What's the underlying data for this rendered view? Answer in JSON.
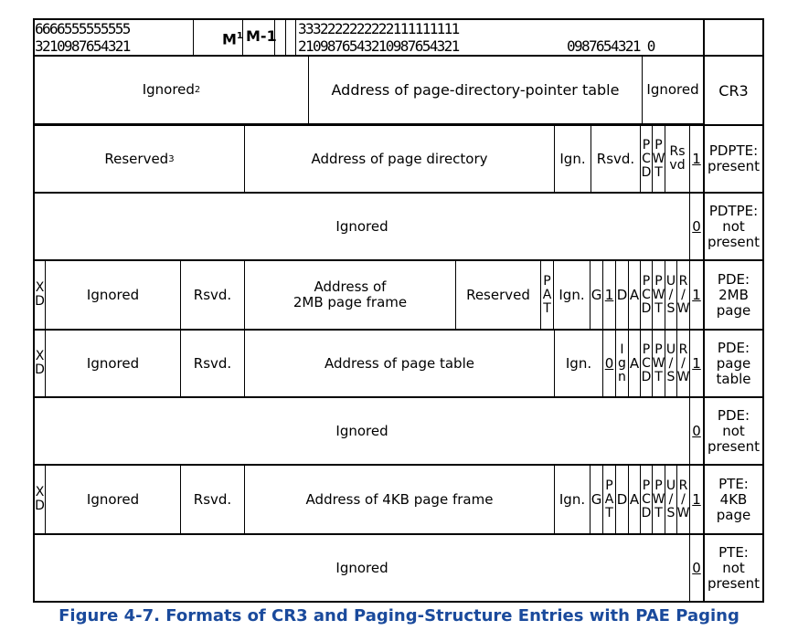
{
  "header": {
    "hi_top": "6666555555555",
    "hi_bot": "3210987654321",
    "m1": "M",
    "m1_sup": "1",
    "m_minus_1": "M-1",
    "lo_top": "3332222222222111111111",
    "lo_bot": "2109876543210987654321",
    "lo_tail_top": "",
    "lo_tail_bot": "0987654321 0"
  },
  "rows": {
    "cr3": {
      "ignored": "Ignored",
      "ignored_sup": "2",
      "address": "Address of page-directory-pointer table",
      "ignored2": "Ignored",
      "label": "CR3"
    },
    "pdpte_present": {
      "reserved": "Reserved",
      "reserved_sup": "3",
      "address": "Address of page directory",
      "ign": "Ign.",
      "rsvd": "Rsvd.",
      "pcd": "P\nC\nD",
      "pwt": "P\nW\nT",
      "rsvd2": "Rs\nvd",
      "p": "1",
      "label": "PDPTE:\npresent"
    },
    "pdpte_not_present": {
      "ignored": "Ignored",
      "p": "0",
      "label": "PDTPE:\nnot\npresent"
    },
    "pde_2mb": {
      "xd": "X\nD",
      "ignored": "Ignored",
      "rsvd": "Rsvd.",
      "address": "Address of\n2MB page frame",
      "reserved": "Reserved",
      "pat": "P\nA\nT",
      "ign": "Ign.",
      "g": "G",
      "ps": "1",
      "d": "D",
      "a": "A",
      "pcd": "P\nC\nD",
      "pwt": "P\nW\nT",
      "us": "U\n/\nS",
      "rw": "R\n/\nW",
      "p": "1",
      "label": "PDE:\n2MB\npage"
    },
    "pde_table": {
      "xd": "X\nD",
      "ignored": "Ignored",
      "rsvd": "Rsvd.",
      "address": "Address of page table",
      "ign": "Ign.",
      "ps": "0",
      "ign2": "I\ng\nn",
      "a": "A",
      "pcd": "P\nC\nD",
      "pwt": "P\nW\nT",
      "us": "U\n/\nS",
      "rw": "R\n/\nW",
      "p": "1",
      "label": "PDE:\npage\ntable"
    },
    "pde_not_present": {
      "ignored": "Ignored",
      "p": "0",
      "label": "PDE:\nnot\npresent"
    },
    "pte_4kb": {
      "xd": "X\nD",
      "ignored": "Ignored",
      "rsvd": "Rsvd.",
      "address": "Address of 4KB page frame",
      "ign": "Ign.",
      "g": "G",
      "pat": "P\nA\nT",
      "d": "D",
      "a": "A",
      "pcd": "P\nC\nD",
      "pwt": "P\nW\nT",
      "us": "U\n/\nS",
      "rw": "R\n/\nW",
      "p": "1",
      "label": "PTE:\n4KB\npage"
    },
    "pte_not_present": {
      "ignored": "Ignored",
      "p": "0",
      "label": "PTE:\nnot\npresent"
    }
  },
  "caption": "Figure 4-7.  Formats of CR3 and Paging-Structure Entries with PAE Paging",
  "colors": {
    "caption": "#1a4a9c",
    "lines": "#000000"
  }
}
